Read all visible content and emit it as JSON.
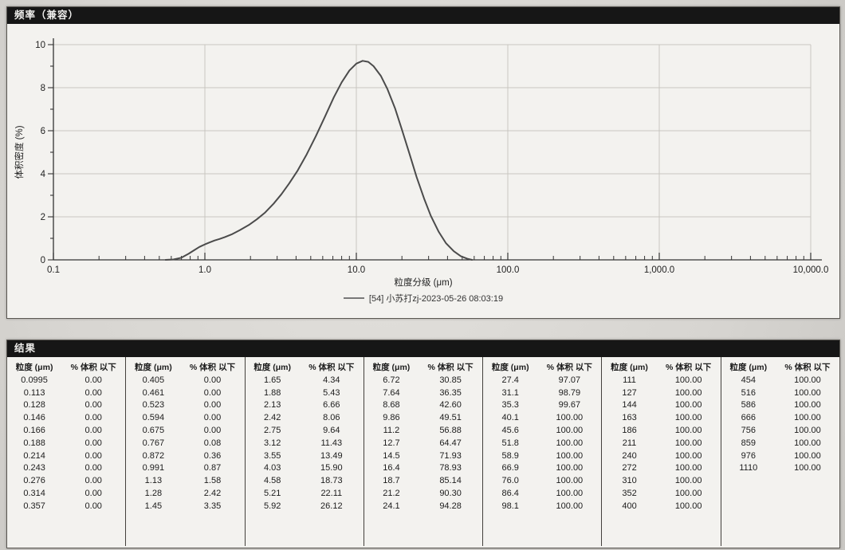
{
  "colors": {
    "header_bar": "#161616",
    "curve": "#4b4b4b",
    "grid": "#c8c6c1",
    "axis": "#333333",
    "paper": "#f3f2ef",
    "page_bg": "#d7d5d1"
  },
  "frequency_panel": {
    "title": "频率（兼容）"
  },
  "chart_data": {
    "type": "line",
    "title": "频率（兼容）",
    "xlabel": "粒度分级 (μm)",
    "ylabel": "体积密度 (%)",
    "x_scale": "log",
    "xlim": [
      0.1,
      10000
    ],
    "ylim": [
      0,
      10
    ],
    "y_ticks": [
      0,
      2,
      4,
      6,
      8,
      10
    ],
    "x_tick_labels": [
      "0.1",
      "1.0",
      "10.0",
      "100.0",
      "1,000.0",
      "10,000.0"
    ],
    "legend": "[54] 小苏打zj-2023-05-26 08:03:19",
    "grid": true,
    "legend_position": "bottom-center",
    "series": [
      {
        "name": "[54] 小苏打zj-2023-05-26 08:03:19",
        "x": [
          0.55,
          0.62,
          0.7,
          0.78,
          0.85,
          0.92,
          1.0,
          1.08,
          1.16,
          1.25,
          1.35,
          1.5,
          1.7,
          1.95,
          2.2,
          2.5,
          2.85,
          3.2,
          3.6,
          4.1,
          4.7,
          5.4,
          6.2,
          7.1,
          8.0,
          9.0,
          10.0,
          11.0,
          12.0,
          13.0,
          14.5,
          16.0,
          18.0,
          20.0,
          22.5,
          25.0,
          28.0,
          31.0,
          35.0,
          39.0,
          44.0,
          49.0,
          54.0,
          58.0
        ],
        "y": [
          0,
          0.02,
          0.1,
          0.28,
          0.45,
          0.6,
          0.72,
          0.82,
          0.9,
          0.97,
          1.05,
          1.18,
          1.38,
          1.62,
          1.88,
          2.2,
          2.62,
          3.05,
          3.55,
          4.15,
          4.9,
          5.75,
          6.65,
          7.55,
          8.25,
          8.8,
          9.12,
          9.25,
          9.2,
          9.0,
          8.55,
          7.95,
          7.05,
          6.05,
          4.9,
          3.85,
          2.85,
          2.05,
          1.3,
          0.78,
          0.4,
          0.17,
          0.05,
          0.0
        ]
      }
    ]
  },
  "results_panel": {
    "title": "结果",
    "col_headers": [
      "粒度 (μm)",
      "% 体积 以下"
    ],
    "groups": [
      {
        "rows": [
          [
            "0.0995",
            "0.00"
          ],
          [
            "0.113",
            "0.00"
          ],
          [
            "0.128",
            "0.00"
          ],
          [
            "0.146",
            "0.00"
          ],
          [
            "0.166",
            "0.00"
          ],
          [
            "0.188",
            "0.00"
          ],
          [
            "0.214",
            "0.00"
          ],
          [
            "0.243",
            "0.00"
          ],
          [
            "0.276",
            "0.00"
          ],
          [
            "0.314",
            "0.00"
          ],
          [
            "0.357",
            "0.00"
          ]
        ]
      },
      {
        "rows": [
          [
            "0.405",
            "0.00"
          ],
          [
            "0.461",
            "0.00"
          ],
          [
            "0.523",
            "0.00"
          ],
          [
            "0.594",
            "0.00"
          ],
          [
            "0.675",
            "0.00"
          ],
          [
            "0.767",
            "0.08"
          ],
          [
            "0.872",
            "0.36"
          ],
          [
            "0.991",
            "0.87"
          ],
          [
            "1.13",
            "1.58"
          ],
          [
            "1.28",
            "2.42"
          ],
          [
            "1.45",
            "3.35"
          ]
        ]
      },
      {
        "rows": [
          [
            "1.65",
            "4.34"
          ],
          [
            "1.88",
            "5.43"
          ],
          [
            "2.13",
            "6.66"
          ],
          [
            "2.42",
            "8.06"
          ],
          [
            "2.75",
            "9.64"
          ],
          [
            "3.12",
            "11.43"
          ],
          [
            "3.55",
            "13.49"
          ],
          [
            "4.03",
            "15.90"
          ],
          [
            "4.58",
            "18.73"
          ],
          [
            "5.21",
            "22.11"
          ],
          [
            "5.92",
            "26.12"
          ]
        ]
      },
      {
        "rows": [
          [
            "6.72",
            "30.85"
          ],
          [
            "7.64",
            "36.35"
          ],
          [
            "8.68",
            "42.60"
          ],
          [
            "9.86",
            "49.51"
          ],
          [
            "11.2",
            "56.88"
          ],
          [
            "12.7",
            "64.47"
          ],
          [
            "14.5",
            "71.93"
          ],
          [
            "16.4",
            "78.93"
          ],
          [
            "18.7",
            "85.14"
          ],
          [
            "21.2",
            "90.30"
          ],
          [
            "24.1",
            "94.28"
          ]
        ]
      },
      {
        "rows": [
          [
            "27.4",
            "97.07"
          ],
          [
            "31.1",
            "98.79"
          ],
          [
            "35.3",
            "99.67"
          ],
          [
            "40.1",
            "100.00"
          ],
          [
            "45.6",
            "100.00"
          ],
          [
            "51.8",
            "100.00"
          ],
          [
            "58.9",
            "100.00"
          ],
          [
            "66.9",
            "100.00"
          ],
          [
            "76.0",
            "100.00"
          ],
          [
            "86.4",
            "100.00"
          ],
          [
            "98.1",
            "100.00"
          ]
        ]
      },
      {
        "rows": [
          [
            "111",
            "100.00"
          ],
          [
            "127",
            "100.00"
          ],
          [
            "144",
            "100.00"
          ],
          [
            "163",
            "100.00"
          ],
          [
            "186",
            "100.00"
          ],
          [
            "211",
            "100.00"
          ],
          [
            "240",
            "100.00"
          ],
          [
            "272",
            "100.00"
          ],
          [
            "310",
            "100.00"
          ],
          [
            "352",
            "100.00"
          ],
          [
            "400",
            "100.00"
          ]
        ]
      },
      {
        "rows": [
          [
            "454",
            "100.00"
          ],
          [
            "516",
            "100.00"
          ],
          [
            "586",
            "100.00"
          ],
          [
            "666",
            "100.00"
          ],
          [
            "756",
            "100.00"
          ],
          [
            "859",
            "100.00"
          ],
          [
            "976",
            "100.00"
          ],
          [
            "1110",
            "100.00"
          ]
        ]
      }
    ]
  }
}
